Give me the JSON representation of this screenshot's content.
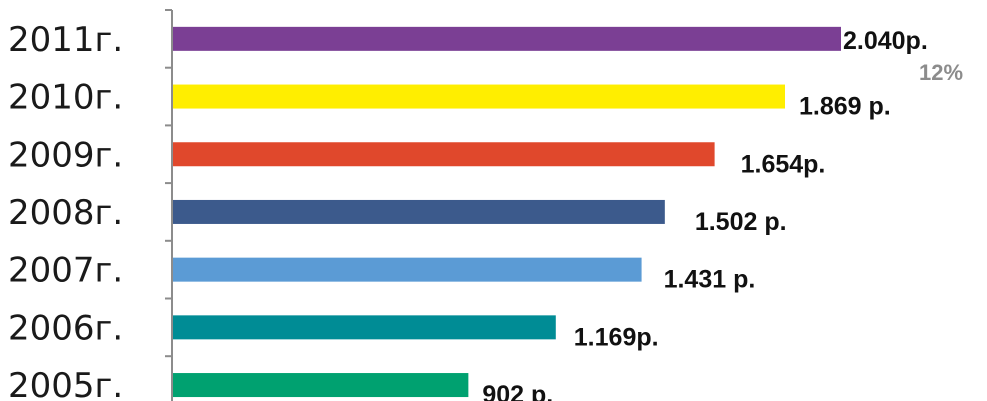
{
  "chart_data": {
    "type": "bar",
    "orientation": "horizontal",
    "categories": [
      "2011г.",
      "2010г.",
      "2009г.",
      "2008г.",
      "2007г.",
      "2006г.",
      "2005г."
    ],
    "values": [
      2040,
      1869,
      1654,
      1502,
      1431,
      1169,
      902
    ],
    "value_labels": [
      "2.040р.",
      "1.869 р.",
      "1.654р.",
      "1.502 р.",
      "1.431 р.",
      "1.169р.",
      "902 р."
    ],
    "bar_colors": [
      "#7b3f94",
      "#ffee00",
      "#e0482c",
      "#3c5a8c",
      "#5b9bd5",
      "#008c95",
      "#00a170"
    ],
    "annotation": "12%",
    "annotation_color": "#8c8c8c",
    "xlim": [
      0,
      2040
    ],
    "grid": false,
    "legend": "none"
  }
}
